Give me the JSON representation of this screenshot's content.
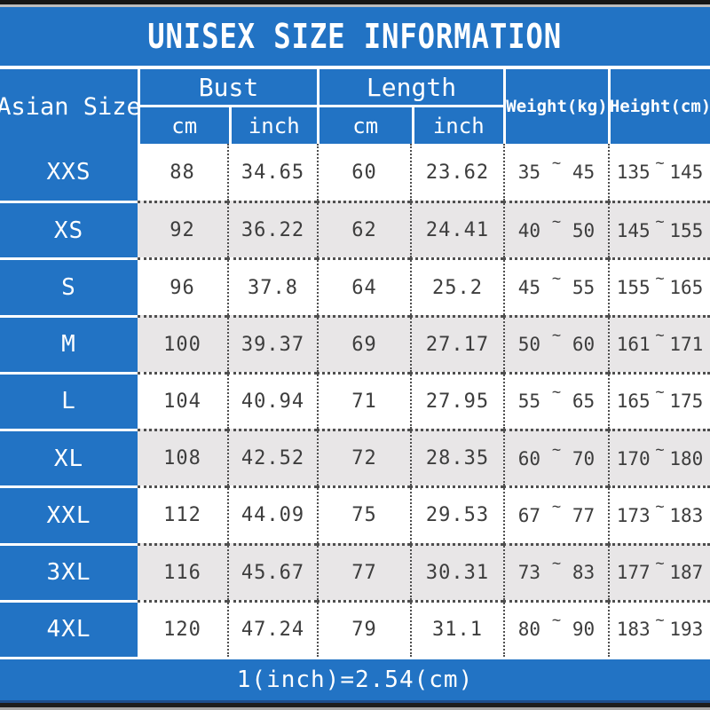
{
  "title": "UNISEX SIZE INFORMATION",
  "footer_note": "1(inch)=2.54(cm)",
  "colors": {
    "primary_blue": "#2273c4",
    "alt_row_gray": "#e8e6e7",
    "text_dark": "#3d3d3d",
    "header_text": "#ffffff"
  },
  "chart_data": {
    "type": "table",
    "title": "UNISEX SIZE INFORMATION",
    "tilde": "~",
    "headers": {
      "corner": "Asian Size",
      "bust_group": "Bust",
      "length_group": "Length",
      "bust_cm": "cm",
      "bust_inch": "inch",
      "length_cm": "cm",
      "length_inch": "inch",
      "weight": "Weight(kg)",
      "height": "Height(cm)"
    },
    "rows": [
      {
        "size": "XXS",
        "bust_cm": "88",
        "bust_inch": "34.65",
        "len_cm": "60",
        "len_inch": "23.62",
        "weight_min": "35",
        "weight_max": "45",
        "height_min": "135",
        "height_max": "145"
      },
      {
        "size": "XS",
        "bust_cm": "92",
        "bust_inch": "36.22",
        "len_cm": "62",
        "len_inch": "24.41",
        "weight_min": "40",
        "weight_max": "50",
        "height_min": "145",
        "height_max": "155"
      },
      {
        "size": "S",
        "bust_cm": "96",
        "bust_inch": "37.8",
        "len_cm": "64",
        "len_inch": "25.2",
        "weight_min": "45",
        "weight_max": "55",
        "height_min": "155",
        "height_max": "165"
      },
      {
        "size": "M",
        "bust_cm": "100",
        "bust_inch": "39.37",
        "len_cm": "69",
        "len_inch": "27.17",
        "weight_min": "50",
        "weight_max": "60",
        "height_min": "161",
        "height_max": "171"
      },
      {
        "size": "L",
        "bust_cm": "104",
        "bust_inch": "40.94",
        "len_cm": "71",
        "len_inch": "27.95",
        "weight_min": "55",
        "weight_max": "65",
        "height_min": "165",
        "height_max": "175"
      },
      {
        "size": "XL",
        "bust_cm": "108",
        "bust_inch": "42.52",
        "len_cm": "72",
        "len_inch": "28.35",
        "weight_min": "60",
        "weight_max": "70",
        "height_min": "170",
        "height_max": "180"
      },
      {
        "size": "XXL",
        "bust_cm": "112",
        "bust_inch": "44.09",
        "len_cm": "75",
        "len_inch": "29.53",
        "weight_min": "67",
        "weight_max": "77",
        "height_min": "173",
        "height_max": "183"
      },
      {
        "size": "3XL",
        "bust_cm": "116",
        "bust_inch": "45.67",
        "len_cm": "77",
        "len_inch": "30.31",
        "weight_min": "73",
        "weight_max": "83",
        "height_min": "177",
        "height_max": "187"
      },
      {
        "size": "4XL",
        "bust_cm": "120",
        "bust_inch": "47.24",
        "len_cm": "79",
        "len_inch": "31.1",
        "weight_min": "80",
        "weight_max": "90",
        "height_min": "183",
        "height_max": "193"
      }
    ]
  }
}
